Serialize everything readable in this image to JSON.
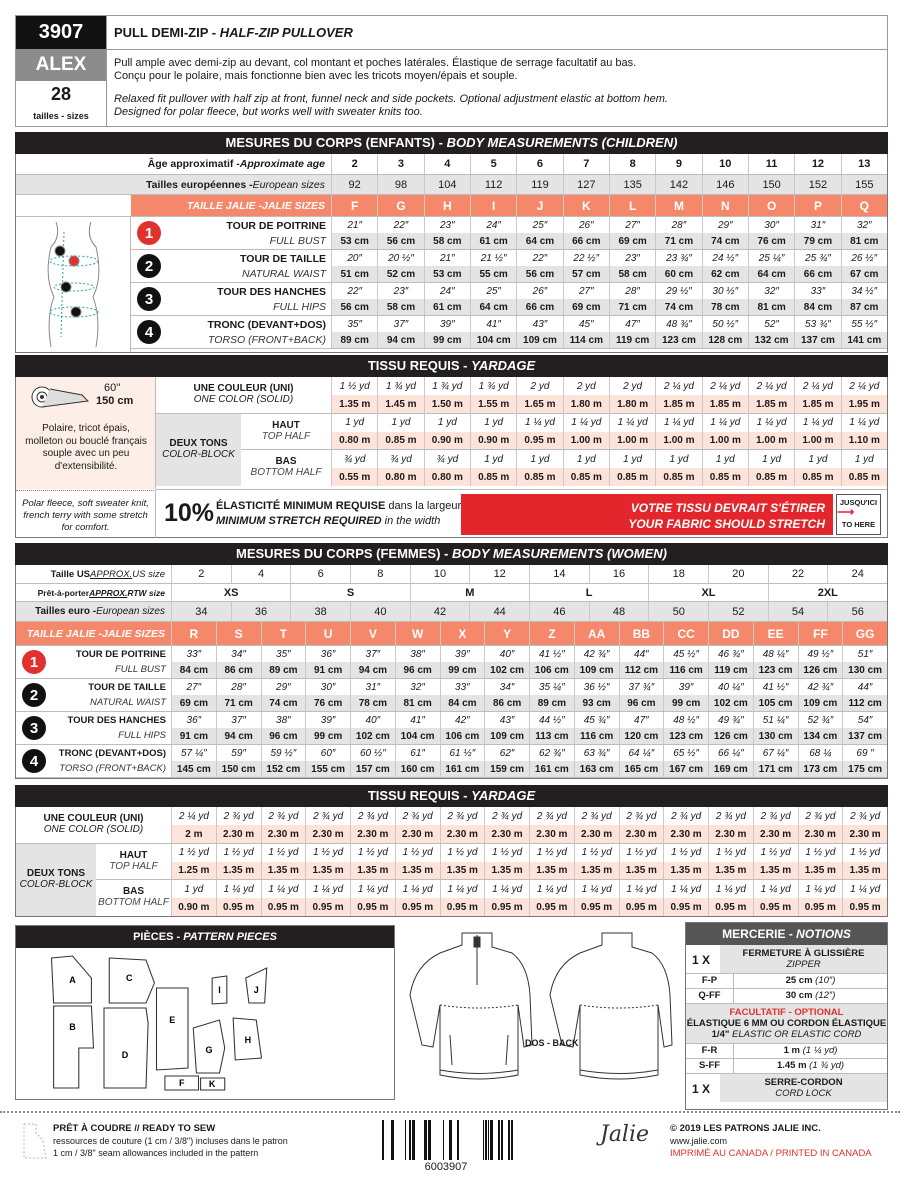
{
  "header": {
    "number": "3907",
    "name": "ALEX",
    "sizes_count": "28",
    "sizes_label": "tailles - sizes",
    "title_fr": "PULL DEMI-ZIP - ",
    "title_en": "HALF-ZIP PULLOVER",
    "desc_fr_1": "Pull ample avec demi-zip au devant, col montant et poches latérales. Élastique de serrage facultatif au bas.",
    "desc_fr_2": "Conçu pour le polaire, mais fonctionne bien avec les tricots moyen/épais et souple.",
    "desc_en_1": "Relaxed fit pullover with half zip at front, funnel neck and side pockets. Optional adjustment elastic at bottom hem.",
    "desc_en_2": "Designed for polar fleece, but works well with sweater knits too."
  },
  "children": {
    "title_fr": "MESURES DU CORPS (ENFANTS) - ",
    "title_en": "BODY MEASUREMENTS (CHILDREN)",
    "age_label_fr": "Âge approximatif - ",
    "age_label_en": "Approximate age",
    "ages": [
      "2",
      "3",
      "4",
      "5",
      "6",
      "7",
      "8",
      "9",
      "10",
      "11",
      "12",
      "13"
    ],
    "euro_label_fr": "Tailles européennes - ",
    "euro_label_en": "European sizes",
    "euro": [
      "92",
      "98",
      "104",
      "112",
      "119",
      "127",
      "135",
      "142",
      "146",
      "150",
      "152",
      "155"
    ],
    "jalie_label": "TAILLE JALIE -JALIE SIZES",
    "sizes": [
      "F",
      "G",
      "H",
      "I",
      "J",
      "K",
      "L",
      "M",
      "N",
      "O",
      "P",
      "Q"
    ],
    "measurements": [
      {
        "num": "1",
        "fr": "TOUR DE POITRINE",
        "en": "FULL BUST",
        "in": [
          "21″",
          "22″",
          "23″",
          "24″",
          "25″",
          "26″",
          "27″",
          "28″",
          "29″",
          "30″",
          "31″",
          "32″"
        ],
        "cm": [
          "53 cm",
          "56 cm",
          "58 cm",
          "61 cm",
          "64 cm",
          "66 cm",
          "69 cm",
          "71 cm",
          "74 cm",
          "76 cm",
          "79 cm",
          "81 cm"
        ]
      },
      {
        "num": "2",
        "fr": "TOUR DE TAILLE",
        "en": "NATURAL WAIST",
        "in": [
          "20″",
          "20 ½″",
          "21″",
          "21 ½″",
          "22″",
          "22 ½″",
          "23″",
          "23 ¾″",
          "24 ½″",
          "25 ¼″",
          "25 ¾″",
          "26 ½″"
        ],
        "cm": [
          "51 cm",
          "52 cm",
          "53 cm",
          "55 cm",
          "56 cm",
          "57 cm",
          "58 cm",
          "60 cm",
          "62 cm",
          "64 cm",
          "66 cm",
          "67 cm"
        ]
      },
      {
        "num": "3",
        "fr": "TOUR DES HANCHES",
        "en": "FULL HIPS",
        "in": [
          "22″",
          "23″",
          "24″",
          "25″",
          "26″",
          "27″",
          "28″",
          "29 ½″",
          "30 ½″",
          "32″",
          "33″",
          "34 ½″"
        ],
        "cm": [
          "56 cm",
          "58 cm",
          "61 cm",
          "64 cm",
          "66 cm",
          "69 cm",
          "71 cm",
          "74 cm",
          "78 cm",
          "81 cm",
          "84 cm",
          "87 cm"
        ]
      },
      {
        "num": "4",
        "fr": "TRONC (DEVANT+DOS)",
        "en": "TORSO (FRONT+BACK)",
        "in": [
          "35″",
          "37″",
          "39″",
          "41″",
          "43″",
          "45″",
          "47″",
          "48 ¾″",
          "50 ½″",
          "52″",
          "53 ¾″",
          "55 ½″"
        ],
        "cm": [
          "89 cm",
          "94 cm",
          "99 cm",
          "104 cm",
          "109 cm",
          "114 cm",
          "119 cm",
          "123 cm",
          "128 cm",
          "132 cm",
          "137 cm",
          "141 cm"
        ]
      }
    ]
  },
  "children_yardage": {
    "title_fr": "TISSU REQUIS - ",
    "title_en": "YARDAGE",
    "fabric_width_in": "60''",
    "fabric_width_cm": "150 cm",
    "fabric_fr": "Polaire, tricot épais, molleton ou bouclé français souple avec un peu d'extensibilité.",
    "fabric_en": "Polar fleece, soft sweater knit, french terry with some stretch for comfort.",
    "one_color_fr": "UNE COULEUR (UNI)",
    "one_color_en": "ONE COLOR (SOLID)",
    "two_tone_fr": "DEUX TONS",
    "two_tone_en": "COLOR-BLOCK",
    "top_fr": "HAUT",
    "top_en": "TOP HALF",
    "bottom_fr": "BAS",
    "bottom_en": "BOTTOM HALF",
    "one_yd": [
      "1 ½ yd",
      "1 ¾ yd",
      "1 ¾ yd",
      "1 ¾ yd",
      "2 yd",
      "2 yd",
      "2 yd",
      "2 ¼ yd",
      "2 ¼ yd",
      "2 ¼ yd",
      "2 ¼ yd",
      "2 ¼ yd"
    ],
    "one_m": [
      "1.35 m",
      "1.45 m",
      "1.50 m",
      "1.55 m",
      "1.65 m",
      "1.80 m",
      "1.80 m",
      "1.85 m",
      "1.85 m",
      "1.85 m",
      "1.85 m",
      "1.95 m"
    ],
    "top_yd": [
      "1 yd",
      "1 yd",
      "1 yd",
      "1 yd",
      "1 ¼ yd",
      "1 ¼ yd",
      "1 ¼ yd",
      "1 ¼ yd",
      "1 ¼ yd",
      "1 ¼ yd",
      "1 ¼ yd",
      "1 ¼ yd"
    ],
    "top_m": [
      "0.80 m",
      "0.85 m",
      "0.90 m",
      "0.90 m",
      "0.95 m",
      "1.00 m",
      "1.00 m",
      "1.00 m",
      "1.00 m",
      "1.00 m",
      "1.00 m",
      "1.10 m"
    ],
    "bottom_yd": [
      "¾ yd",
      "¾ yd",
      "¾ yd",
      "1 yd",
      "1 yd",
      "1 yd",
      "1 yd",
      "1 yd",
      "1 yd",
      "1 yd",
      "1 yd",
      "1 yd"
    ],
    "bottom_m": [
      "0.55 m",
      "0.80 m",
      "0.80 m",
      "0.85 m",
      "0.85 m",
      "0.85 m",
      "0.85 m",
      "0.85 m",
      "0.85 m",
      "0.85 m",
      "0.85 m",
      "0.85 m"
    ],
    "stretch_pct": "10%",
    "stretch_fr_b": "ÉLASTICITÉ MINIMUM REQUISE",
    "stretch_fr": " dans la largeur",
    "stretch_en_b": "MINIMUM STRETCH REQUIRED",
    "stretch_en": " in the width",
    "stretch_bar_fr": "VOTRE TISSU DEVRAIT S'ÉTIRER",
    "stretch_bar_en": "YOUR FABRIC SHOULD STRETCH",
    "to_here_fr": "JUSQU'ICI",
    "to_here_en": "TO HERE",
    "stretch_color": "#e3262b"
  },
  "women": {
    "title_fr": "MESURES DU CORPS (FEMMES) - ",
    "title_en": "BODY MEASUREMENTS (WOMEN)",
    "us_label_fr": "Taille US ",
    "us_label_u": "APPROX.",
    "us_label_en": " US size",
    "us": [
      "2",
      "4",
      "6",
      "8",
      "10",
      "12",
      "14",
      "16",
      "18",
      "20",
      "22",
      "24"
    ],
    "rtw_label_fr": "Prêt-à-porter ",
    "rtw_label_u": "APPROX.",
    "rtw_label_en": " RTW size",
    "rtw": [
      "XS",
      "S",
      "M",
      "L",
      "XL",
      "2XL"
    ],
    "euro_label_fr": "Tailles euro - ",
    "euro_label_en": "European sizes",
    "euro": [
      "34",
      "36",
      "38",
      "40",
      "42",
      "44",
      "46",
      "48",
      "50",
      "52",
      "54",
      "56"
    ],
    "jalie_label": "TAILLE JALIE -JALIE SIZES",
    "sizes": [
      "R",
      "S",
      "T",
      "U",
      "V",
      "W",
      "X",
      "Y",
      "Z",
      "AA",
      "BB",
      "CC",
      "DD",
      "EE",
      "FF",
      "GG"
    ],
    "measurements": [
      {
        "num": "1",
        "fr": "TOUR DE POITRINE",
        "en": "FULL BUST",
        "in": [
          "33″",
          "34″",
          "35″",
          "36″",
          "37″",
          "38″",
          "39″",
          "40″",
          "41 ½″",
          "42 ¾″",
          "44″",
          "45 ½″",
          "46 ¾″",
          "48 ¼″",
          "49 ½″",
          "51″"
        ],
        "cm": [
          "84 cm",
          "86 cm",
          "89 cm",
          "91 cm",
          "94 cm",
          "96 cm",
          "99 cm",
          "102 cm",
          "106 cm",
          "109 cm",
          "112 cm",
          "116 cm",
          "119 cm",
          "123 cm",
          "126 cm",
          "130 cm"
        ]
      },
      {
        "num": "2",
        "fr": "TOUR DE TAILLE",
        "en": "NATURAL WAIST",
        "in": [
          "27″",
          "28″",
          "29″",
          "30″",
          "31″",
          "32″",
          "33″",
          "34″",
          "35 ¼″",
          "36 ½″",
          "37 ¾″",
          "39″",
          "40 ¼″",
          "41 ½″",
          "42 ¾″",
          "44″"
        ],
        "cm": [
          "69 cm",
          "71 cm",
          "74 cm",
          "76 cm",
          "78 cm",
          "81 cm",
          "84 cm",
          "86 cm",
          "89 cm",
          "93 cm",
          "96 cm",
          "99 cm",
          "102 cm",
          "105 cm",
          "109 cm",
          "112 cm"
        ]
      },
      {
        "num": "3",
        "fr": "TOUR DES HANCHES",
        "en": "FULL HIPS",
        "in": [
          "36″",
          "37″",
          "38″",
          "39″",
          "40″",
          "41″",
          "42″",
          "43″",
          "44 ½″",
          "45 ¾″",
          "47″",
          "48 ½″",
          "49 ¾″",
          "51 ¼″",
          "52 ¾″",
          "54″"
        ],
        "cm": [
          "91 cm",
          "94 cm",
          "96 cm",
          "99 cm",
          "102 cm",
          "104 cm",
          "106 cm",
          "109 cm",
          "113 cm",
          "116 cm",
          "120 cm",
          "123 cm",
          "126 cm",
          "130 cm",
          "134 cm",
          "137 cm"
        ]
      },
      {
        "num": "4",
        "fr": "TRONC (DEVANT+DOS)",
        "en": "TORSO (FRONT+BACK)",
        "in": [
          "57 ¼″",
          "59″",
          "59 ½″",
          "60″",
          "60 ½″",
          "61″",
          "61 ½″",
          "62″",
          "62 ¾″",
          "63 ¾″",
          "64 ¼″",
          "65 ½″",
          "66 ¼″",
          "67 ¼″",
          "68 ¼",
          "69 ″"
        ],
        "cm": [
          "145 cm",
          "150 cm",
          "152 cm",
          "155 cm",
          "157 cm",
          "160 cm",
          "161 cm",
          "159 cm",
          "161 cm",
          "163 cm",
          "165 cm",
          "167 cm",
          "169 cm",
          "171 cm",
          "173 cm",
          "175 cm"
        ]
      }
    ]
  },
  "women_yardage": {
    "title_fr": "TISSU REQUIS - ",
    "title_en": "YARDAGE",
    "one_color_fr": "UNE COULEUR (UNI)",
    "one_color_en": "ONE COLOR (SOLID)",
    "two_tone_fr": "DEUX TONS",
    "two_tone_en": "COLOR-BLOCK",
    "top_fr": "HAUT",
    "top_en": "TOP HALF",
    "bottom_fr": "BAS",
    "bottom_en": "BOTTOM HALF",
    "one_yd": [
      "2 ¼ yd",
      "2 ¾ yd",
      "2 ¾ yd",
      "2 ¾ yd",
      "2 ¾ yd",
      "2 ¾ yd",
      "2 ¾ yd",
      "2 ¾ yd",
      "2 ¾ yd",
      "2 ¾ yd",
      "2 ¾ yd",
      "2 ¾ yd",
      "2 ¾ yd",
      "2 ¾ yd",
      "2 ¾ yd",
      "2 ¾ yd"
    ],
    "one_m": [
      "2 m",
      "2.30 m",
      "2.30 m",
      "2.30 m",
      "2.30 m",
      "2.30 m",
      "2.30 m",
      "2.30 m",
      "2.30 m",
      "2.30 m",
      "2.30 m",
      "2.30 m",
      "2.30 m",
      "2.30 m",
      "2.30 m",
      "2.30 m"
    ],
    "top_yd": [
      "1 ½ yd",
      "1 ½ yd",
      "1 ½ yd",
      "1 ½ yd",
      "1 ½ yd",
      "1 ½ yd",
      "1 ½ yd",
      "1 ½ yd",
      "1 ½ yd",
      "1 ½ yd",
      "1 ½ yd",
      "1 ½ yd",
      "1 ½ yd",
      "1 ½ yd",
      "1 ½ yd",
      "1 ½ yd"
    ],
    "top_m": [
      "1.25 m",
      "1.35 m",
      "1.35 m",
      "1.35 m",
      "1.35 m",
      "1.35 m",
      "1.35 m",
      "1.35 m",
      "1.35 m",
      "1.35 m",
      "1.35 m",
      "1.35 m",
      "1.35 m",
      "1.35 m",
      "1.35 m",
      "1.35 m"
    ],
    "bottom_yd": [
      "1 yd",
      "1 ¼ yd",
      "1 ¼ yd",
      "1 ¼ yd",
      "1 ¼ yd",
      "1 ¼ yd",
      "1 ¼ yd",
      "1 ¼ yd",
      "1 ¼ yd",
      "1 ¼ yd",
      "1 ¼ yd",
      "1 ¼ yd",
      "1 ¼ yd",
      "1 ¼ yd",
      "1 ¼ yd",
      "1 ¼ yd"
    ],
    "bottom_m": [
      "0.90 m",
      "0.95 m",
      "0.95 m",
      "0.95 m",
      "0.95 m",
      "0.95 m",
      "0.95 m",
      "0.95 m",
      "0.95 m",
      "0.95 m",
      "0.95 m",
      "0.95 m",
      "0.95 m",
      "0.95 m",
      "0.95 m",
      "0.95 m"
    ]
  },
  "pieces": {
    "title_fr": "PIÈCES - ",
    "title_en": "PATTERN PIECES",
    "letters": [
      "A",
      "B",
      "C",
      "D",
      "E",
      "F",
      "G",
      "H",
      "I",
      "J",
      "K"
    ]
  },
  "garment": {
    "back_label": "DOS - BACK"
  },
  "notions": {
    "title_fr": "MERCERIE - ",
    "title_en": "NOTIONS",
    "zipper_qty": "1 X",
    "zipper_fr": "FERMETURE À GLISSIÈRE",
    "zipper_en": "ZIPPER",
    "zipper_sizes": [
      {
        "range": "F-P",
        "value": "25 cm",
        "imp": "(10″)"
      },
      {
        "range": "Q-FF",
        "value": "30 cm",
        "imp": "(12″)"
      }
    ],
    "optional": "FACULTATIF - OPTIONAL",
    "elastic_fr": "ÉLASTIQUE 6 MM OU CORDON ÉLASTIQUE",
    "elastic_en_b": "1/4\"",
    "elastic_en": " ELASTIC OR ELASTIC CORD",
    "elastic_sizes": [
      {
        "range": "F-R",
        "value": "1 m",
        "imp": "(1 ¼ yd)"
      },
      {
        "range": "S-FF",
        "value": "1.45 m",
        "imp": "(1 ¾ yd)"
      }
    ],
    "cordlock_qty": "1 X",
    "cordlock_fr": "SERRE-CORDON",
    "cordlock_en": "CORD LOCK",
    "optional_color": "#e1312f"
  },
  "footer": {
    "ready_title": "PRÊT À COUDRE // READY TO SEW",
    "ready_fr": "ressources de couture (1 cm / 3/8\") incluses dans le patron",
    "ready_en": "1 cm / 3/8\" seam allowances included in the pattern",
    "barcode_number": "6003907",
    "logo": "Jalie",
    "copyright": "© 2019 LES PATRONS JALIE INC.",
    "website": "www.jalie.com",
    "printed": "IMPRIMÉ AU CANADA / PRINTED IN CANADA"
  }
}
